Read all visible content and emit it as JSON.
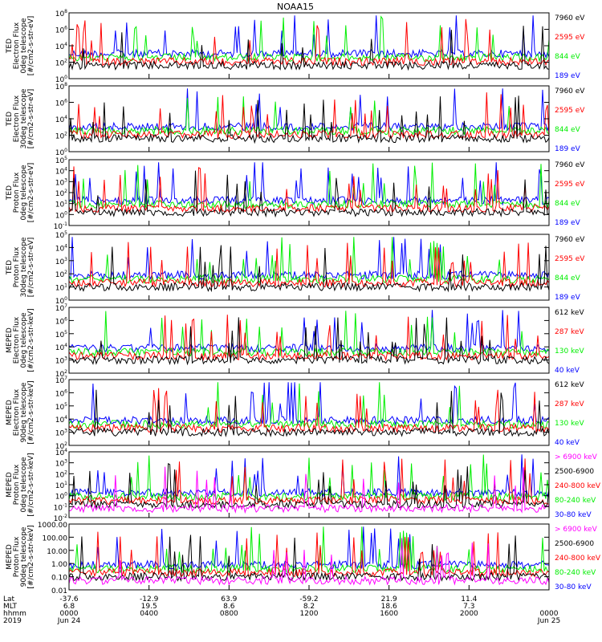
{
  "title": "NOAA15",
  "colors": {
    "blue": "#0000ff",
    "red": "#ff0000",
    "green": "#00ee00",
    "black": "#000000",
    "magenta": "#ff00ff"
  },
  "chart_data": {
    "type": "line",
    "title": "NOAA15",
    "panels": [
      {
        "ylabel": [
          "TED",
          "Electron Flux",
          "0deg telescope",
          "[#/cm2-s-str-eV]"
        ],
        "y_tick_labels": [
          "10^0",
          "10^2",
          "10^4",
          "10^6",
          "10^8"
        ],
        "ylim": [
          1,
          100000000
        ],
        "yscale": "log",
        "series": [
          {
            "name": "7960 eV",
            "color": "#000000"
          },
          {
            "name": "2595 eV",
            "color": "#ff0000"
          },
          {
            "name": "844 eV",
            "color": "#00ee00"
          },
          {
            "name": "189 eV",
            "color": "#0000ff"
          }
        ]
      },
      {
        "ylabel": [
          "TED",
          "Electron Flux",
          "30deg telescope",
          "[#/cm2-s-str-eV]"
        ],
        "y_tick_labels": [
          "10^0",
          "10^2",
          "10^4",
          "10^6",
          "10^8"
        ],
        "ylim": [
          1,
          100000000
        ],
        "yscale": "log",
        "series": [
          {
            "name": "7960 eV",
            "color": "#000000"
          },
          {
            "name": "2595 eV",
            "color": "#ff0000"
          },
          {
            "name": "844 eV",
            "color": "#00ee00"
          },
          {
            "name": "189 eV",
            "color": "#0000ff"
          }
        ]
      },
      {
        "ylabel": [
          "TED",
          "Proton Flux",
          "0deg telescope",
          "[#/cm2-s-str-eV]"
        ],
        "y_tick_labels": [
          "10^-1",
          "10^0",
          "10^1",
          "10^2",
          "10^3",
          "10^4",
          "10^5"
        ],
        "ylim": [
          0.1,
          100000
        ],
        "yscale": "log",
        "series": [
          {
            "name": "7960 eV",
            "color": "#000000"
          },
          {
            "name": "2595 eV",
            "color": "#ff0000"
          },
          {
            "name": "844 eV",
            "color": "#00ee00"
          },
          {
            "name": "189 eV",
            "color": "#0000ff"
          }
        ]
      },
      {
        "ylabel": [
          "TED",
          "Proton Flux",
          "30deg telescope",
          "[#/cm2-s-str-eV]"
        ],
        "y_tick_labels": [
          "10^0",
          "10^1",
          "10^2",
          "10^3",
          "10^4",
          "10^5"
        ],
        "ylim": [
          1,
          100000
        ],
        "yscale": "log",
        "series": [
          {
            "name": "7960 eV",
            "color": "#000000"
          },
          {
            "name": "2595 eV",
            "color": "#ff0000"
          },
          {
            "name": "844 eV",
            "color": "#00ee00"
          },
          {
            "name": "189 eV",
            "color": "#0000ff"
          }
        ]
      },
      {
        "ylabel": [
          "MEPED",
          "Electron Flux",
          "0deg telescope",
          "[#/cm2-s-str-keV]"
        ],
        "y_tick_labels": [
          "10^2",
          "10^3",
          "10^4",
          "10^5",
          "10^6",
          "10^7"
        ],
        "ylim": [
          100,
          10000000
        ],
        "yscale": "log",
        "series": [
          {
            "name": "612 keV",
            "color": "#000000"
          },
          {
            "name": "287 keV",
            "color": "#ff0000"
          },
          {
            "name": "130 keV",
            "color": "#00ee00"
          },
          {
            "name": "40 keV",
            "color": "#0000ff"
          }
        ]
      },
      {
        "ylabel": [
          "MEPED",
          "Electron Flux",
          "90deg telescope",
          "[#/cm2-s-str-keV]"
        ],
        "y_tick_labels": [
          "10^2",
          "10^3",
          "10^4",
          "10^5",
          "10^6",
          "10^7"
        ],
        "ylim": [
          100,
          10000000
        ],
        "yscale": "log",
        "series": [
          {
            "name": "612 keV",
            "color": "#000000"
          },
          {
            "name": "287 keV",
            "color": "#ff0000"
          },
          {
            "name": "130 keV",
            "color": "#00ee00"
          },
          {
            "name": "40 keV",
            "color": "#0000ff"
          }
        ]
      },
      {
        "ylabel": [
          "MEPED",
          "Proton Flux",
          "0deg telescope",
          "[#/cm2-s-str-keV]"
        ],
        "y_tick_labels": [
          "10^-2",
          "10^-1",
          "10^0",
          "10^1",
          "10^2",
          "10^3",
          "10^4"
        ],
        "ylim": [
          0.01,
          10000
        ],
        "yscale": "log",
        "series": [
          {
            "name": "> 6900 keV",
            "color": "#ff00ff"
          },
          {
            "name": "2500-6900",
            "color": "#000000"
          },
          {
            "name": "240-800 keV",
            "color": "#ff0000"
          },
          {
            "name": "80-240 keV",
            "color": "#00ee00"
          },
          {
            "name": "30-80 keV",
            "color": "#0000ff"
          }
        ]
      },
      {
        "ylabel": [
          "MEPED",
          "Proton Flux",
          "90deg telescope",
          "[#/cm2-s-str-keV]"
        ],
        "y_tick_labels": [
          "0.01",
          "0.10",
          "1.00",
          "10.00",
          "100.00",
          "1000.00"
        ],
        "ylim": [
          0.01,
          10000
        ],
        "yscale": "log",
        "series": [
          {
            "name": "> 6900 keV",
            "color": "#ff00ff"
          },
          {
            "name": "2500-6900",
            "color": "#000000"
          },
          {
            "name": "240-800 keV",
            "color": "#ff0000"
          },
          {
            "name": "80-240 keV",
            "color": "#00ee00"
          },
          {
            "name": "30-80 keV",
            "color": "#0000ff"
          }
        ]
      }
    ],
    "x_axis": {
      "row_labels": [
        "Lat",
        "MLT",
        "hhmm",
        "2019"
      ],
      "ticks": [
        {
          "lat": "-37.6",
          "mlt": "6.8",
          "hhmm": "0000",
          "date": "Jun 24"
        },
        {
          "lat": "-12.9",
          "mlt": "19.5",
          "hhmm": "0400",
          "date": ""
        },
        {
          "lat": "63.9",
          "mlt": "8.6",
          "hhmm": "0800",
          "date": ""
        },
        {
          "lat": "-59.2",
          "mlt": "8.2",
          "hhmm": "1200",
          "date": ""
        },
        {
          "lat": "21.9",
          "mlt": "18.6",
          "hhmm": "1600",
          "date": ""
        },
        {
          "lat": "11.4",
          "mlt": "7.3",
          "hhmm": "2000",
          "date": ""
        },
        {
          "lat": "",
          "mlt": "",
          "hhmm": "0000",
          "date": "Jun 25"
        }
      ]
    }
  }
}
